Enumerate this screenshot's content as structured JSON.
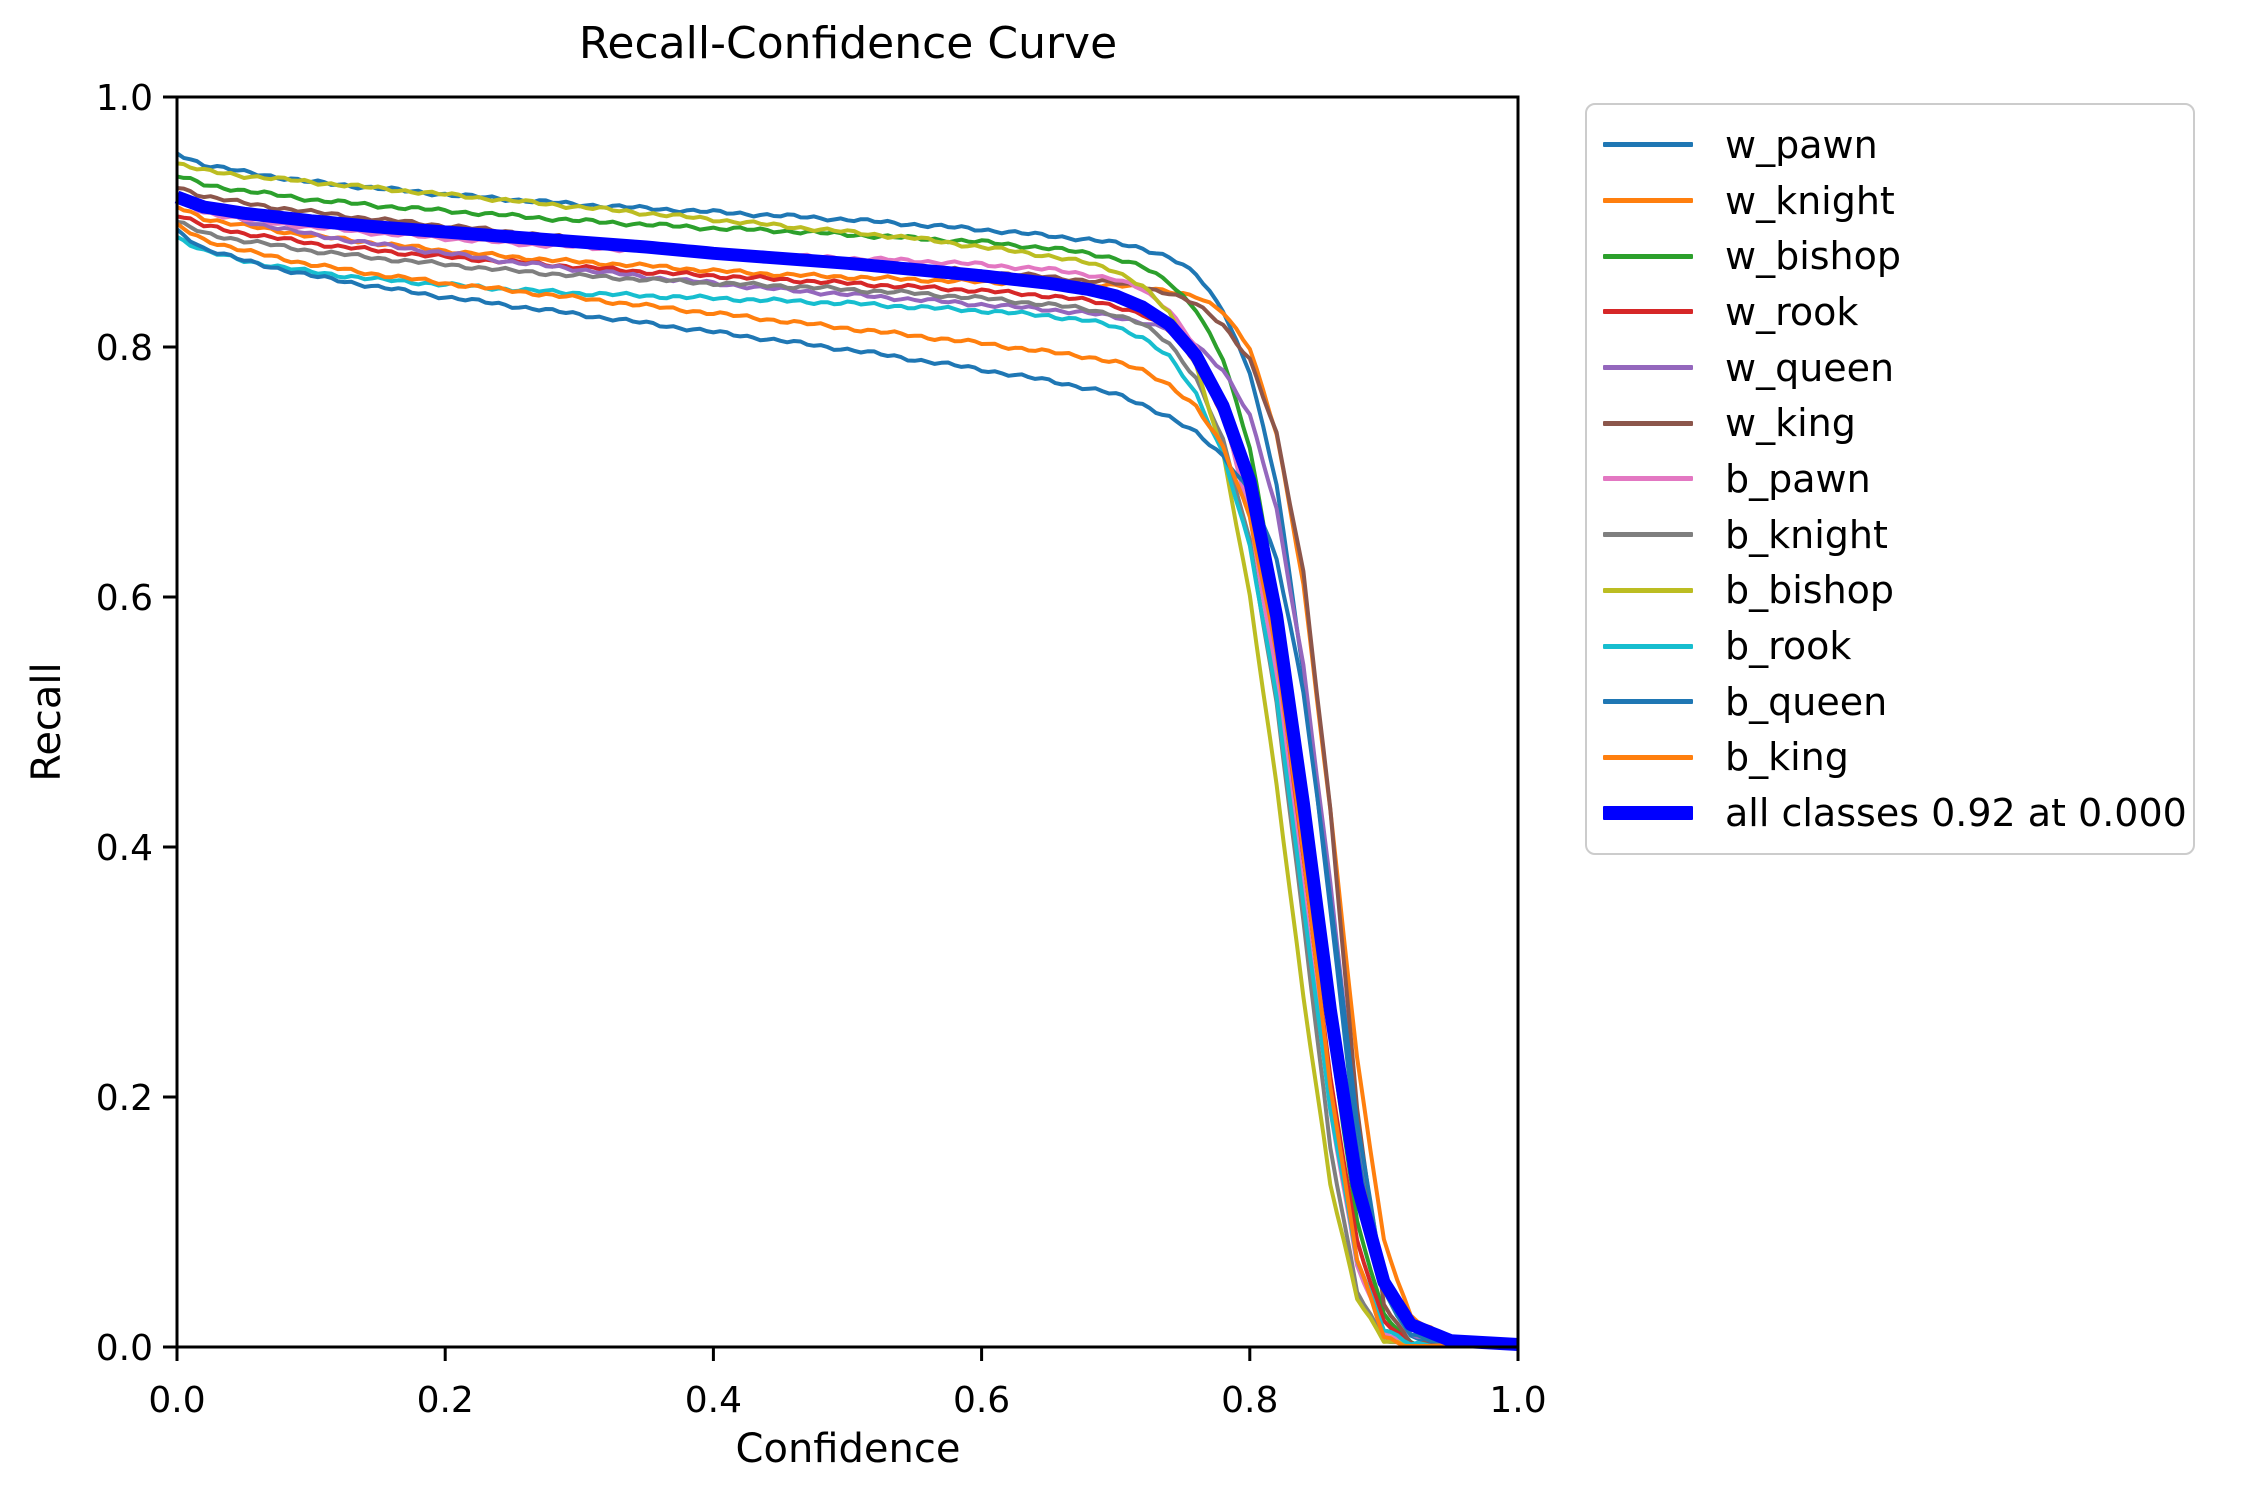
{
  "figure_title": "Recall-Confidence Curve",
  "chart_data": {
    "type": "line",
    "title": "Recall-Confidence Curve",
    "xlabel": "Confidence",
    "ylabel": "Recall",
    "xlim": [
      0.0,
      1.0
    ],
    "ylim": [
      0.0,
      1.0
    ],
    "grid": false,
    "legend_position": "right",
    "x_tick_labels": [
      "0.0",
      "0.2",
      "0.4",
      "0.6",
      "0.8",
      "1.0"
    ],
    "y_tick_labels": [
      "0.0",
      "0.2",
      "0.4",
      "0.6",
      "0.8",
      "1.0"
    ],
    "x": [
      0.0,
      0.02,
      0.05,
      0.1,
      0.15,
      0.2,
      0.25,
      0.3,
      0.35,
      0.4,
      0.45,
      0.5,
      0.55,
      0.6,
      0.65,
      0.68,
      0.7,
      0.72,
      0.74,
      0.76,
      0.78,
      0.8,
      0.82,
      0.84,
      0.86,
      0.88,
      0.9,
      0.92,
      0.95,
      1.0
    ],
    "series": [
      {
        "name": "w_pawn",
        "color": "#1f77b4",
        "width": 4,
        "recall": [
          0.955,
          0.946,
          0.94,
          0.932,
          0.927,
          0.922,
          0.918,
          0.914,
          0.911,
          0.908,
          0.905,
          0.902,
          0.898,
          0.894,
          0.889,
          0.886,
          0.883,
          0.879,
          0.872,
          0.858,
          0.83,
          0.78,
          0.69,
          0.54,
          0.35,
          0.16,
          0.045,
          0.008,
          0.0,
          0.0
        ]
      },
      {
        "name": "w_knight",
        "color": "#ff7f0e",
        "width": 4,
        "recall": [
          0.912,
          0.903,
          0.897,
          0.889,
          0.883,
          0.877,
          0.872,
          0.868,
          0.865,
          0.861,
          0.858,
          0.856,
          0.854,
          0.852,
          0.851,
          0.85,
          0.849,
          0.848,
          0.845,
          0.84,
          0.828,
          0.8,
          0.73,
          0.61,
          0.43,
          0.23,
          0.085,
          0.025,
          0.004,
          0.0
        ]
      },
      {
        "name": "w_bishop",
        "color": "#2ca02c",
        "width": 4,
        "recall": [
          0.937,
          0.93,
          0.925,
          0.918,
          0.913,
          0.909,
          0.905,
          0.901,
          0.898,
          0.895,
          0.893,
          0.89,
          0.887,
          0.884,
          0.879,
          0.875,
          0.871,
          0.864,
          0.852,
          0.83,
          0.79,
          0.72,
          0.6,
          0.43,
          0.25,
          0.1,
          0.025,
          0.004,
          0.0,
          0.0
        ]
      },
      {
        "name": "w_rook",
        "color": "#d62728",
        "width": 4,
        "recall": [
          0.906,
          0.897,
          0.891,
          0.883,
          0.877,
          0.872,
          0.868,
          0.864,
          0.86,
          0.857,
          0.854,
          0.851,
          0.848,
          0.845,
          0.841,
          0.837,
          0.833,
          0.826,
          0.813,
          0.788,
          0.745,
          0.67,
          0.55,
          0.39,
          0.215,
          0.085,
          0.02,
          0.003,
          0.0,
          0.0
        ]
      },
      {
        "name": "w_queen",
        "color": "#9467bd",
        "width": 4,
        "recall": [
          0.923,
          0.911,
          0.901,
          0.89,
          0.882,
          0.875,
          0.868,
          0.862,
          0.856,
          0.851,
          0.846,
          0.842,
          0.838,
          0.834,
          0.83,
          0.827,
          0.824,
          0.82,
          0.814,
          0.802,
          0.782,
          0.745,
          0.67,
          0.545,
          0.37,
          0.18,
          0.05,
          0.01,
          0.0,
          0.0
        ]
      },
      {
        "name": "w_king",
        "color": "#8c564b",
        "width": 4,
        "recall": [
          0.928,
          0.921,
          0.915,
          0.908,
          0.902,
          0.897,
          0.892,
          0.886,
          0.881,
          0.876,
          0.872,
          0.868,
          0.864,
          0.86,
          0.856,
          0.853,
          0.851,
          0.848,
          0.843,
          0.834,
          0.818,
          0.79,
          0.73,
          0.62,
          0.43,
          0.19,
          0.035,
          0.003,
          0.0,
          0.0
        ]
      },
      {
        "name": "b_pawn",
        "color": "#e377c2",
        "width": 4,
        "recall": [
          0.917,
          0.908,
          0.902,
          0.896,
          0.891,
          0.887,
          0.883,
          0.88,
          0.877,
          0.875,
          0.873,
          0.871,
          0.869,
          0.866,
          0.862,
          0.858,
          0.854,
          0.846,
          0.83,
          0.8,
          0.75,
          0.665,
          0.535,
          0.365,
          0.19,
          0.065,
          0.012,
          0.001,
          0.0,
          0.0
        ]
      },
      {
        "name": "b_knight",
        "color": "#7f7f7f",
        "width": 4,
        "recall": [
          0.9,
          0.891,
          0.885,
          0.877,
          0.871,
          0.866,
          0.861,
          0.857,
          0.854,
          0.851,
          0.849,
          0.846,
          0.843,
          0.839,
          0.834,
          0.83,
          0.826,
          0.818,
          0.803,
          0.775,
          0.725,
          0.645,
          0.515,
          0.34,
          0.16,
          0.045,
          0.005,
          0.0,
          0.0,
          0.0
        ]
      },
      {
        "name": "b_bishop",
        "color": "#bcbd22",
        "width": 4,
        "recall": [
          0.947,
          0.941,
          0.937,
          0.932,
          0.927,
          0.922,
          0.917,
          0.912,
          0.907,
          0.902,
          0.897,
          0.892,
          0.887,
          0.88,
          0.873,
          0.867,
          0.861,
          0.849,
          0.827,
          0.785,
          0.715,
          0.6,
          0.45,
          0.28,
          0.13,
          0.04,
          0.005,
          0.0,
          0.0,
          0.0
        ]
      },
      {
        "name": "b_rook",
        "color": "#17becf",
        "width": 4,
        "recall": [
          0.888,
          0.877,
          0.869,
          0.86,
          0.854,
          0.85,
          0.846,
          0.843,
          0.841,
          0.839,
          0.837,
          0.835,
          0.832,
          0.829,
          0.825,
          0.821,
          0.816,
          0.808,
          0.792,
          0.762,
          0.715,
          0.64,
          0.52,
          0.355,
          0.19,
          0.07,
          0.015,
          0.002,
          0.0,
          0.0
        ]
      },
      {
        "name": "b_queen",
        "color": "#1f77b4",
        "width": 4,
        "recall": [
          0.893,
          0.879,
          0.869,
          0.857,
          0.848,
          0.84,
          0.833,
          0.826,
          0.819,
          0.812,
          0.805,
          0.798,
          0.79,
          0.782,
          0.773,
          0.767,
          0.762,
          0.754,
          0.744,
          0.731,
          0.713,
          0.685,
          0.63,
          0.525,
          0.36,
          0.18,
          0.05,
          0.01,
          0.0,
          0.0
        ]
      },
      {
        "name": "b_king",
        "color": "#ff7f0e",
        "width": 4,
        "recall": [
          0.897,
          0.886,
          0.877,
          0.866,
          0.858,
          0.851,
          0.845,
          0.839,
          0.833,
          0.827,
          0.821,
          0.815,
          0.809,
          0.803,
          0.796,
          0.792,
          0.788,
          0.781,
          0.77,
          0.752,
          0.72,
          0.665,
          0.555,
          0.395,
          0.21,
          0.07,
          0.008,
          0.0,
          0.0,
          0.0
        ]
      },
      {
        "name": "all classes",
        "legend_label": "all classes 0.92 at 0.000",
        "color": "#0000ff",
        "width": 13,
        "recall": [
          0.92,
          0.912,
          0.907,
          0.901,
          0.896,
          0.892,
          0.888,
          0.884,
          0.88,
          0.875,
          0.871,
          0.867,
          0.862,
          0.857,
          0.851,
          0.846,
          0.841,
          0.832,
          0.818,
          0.793,
          0.753,
          0.693,
          0.585,
          0.435,
          0.27,
          0.13,
          0.052,
          0.018,
          0.005,
          0.002
        ]
      }
    ]
  }
}
